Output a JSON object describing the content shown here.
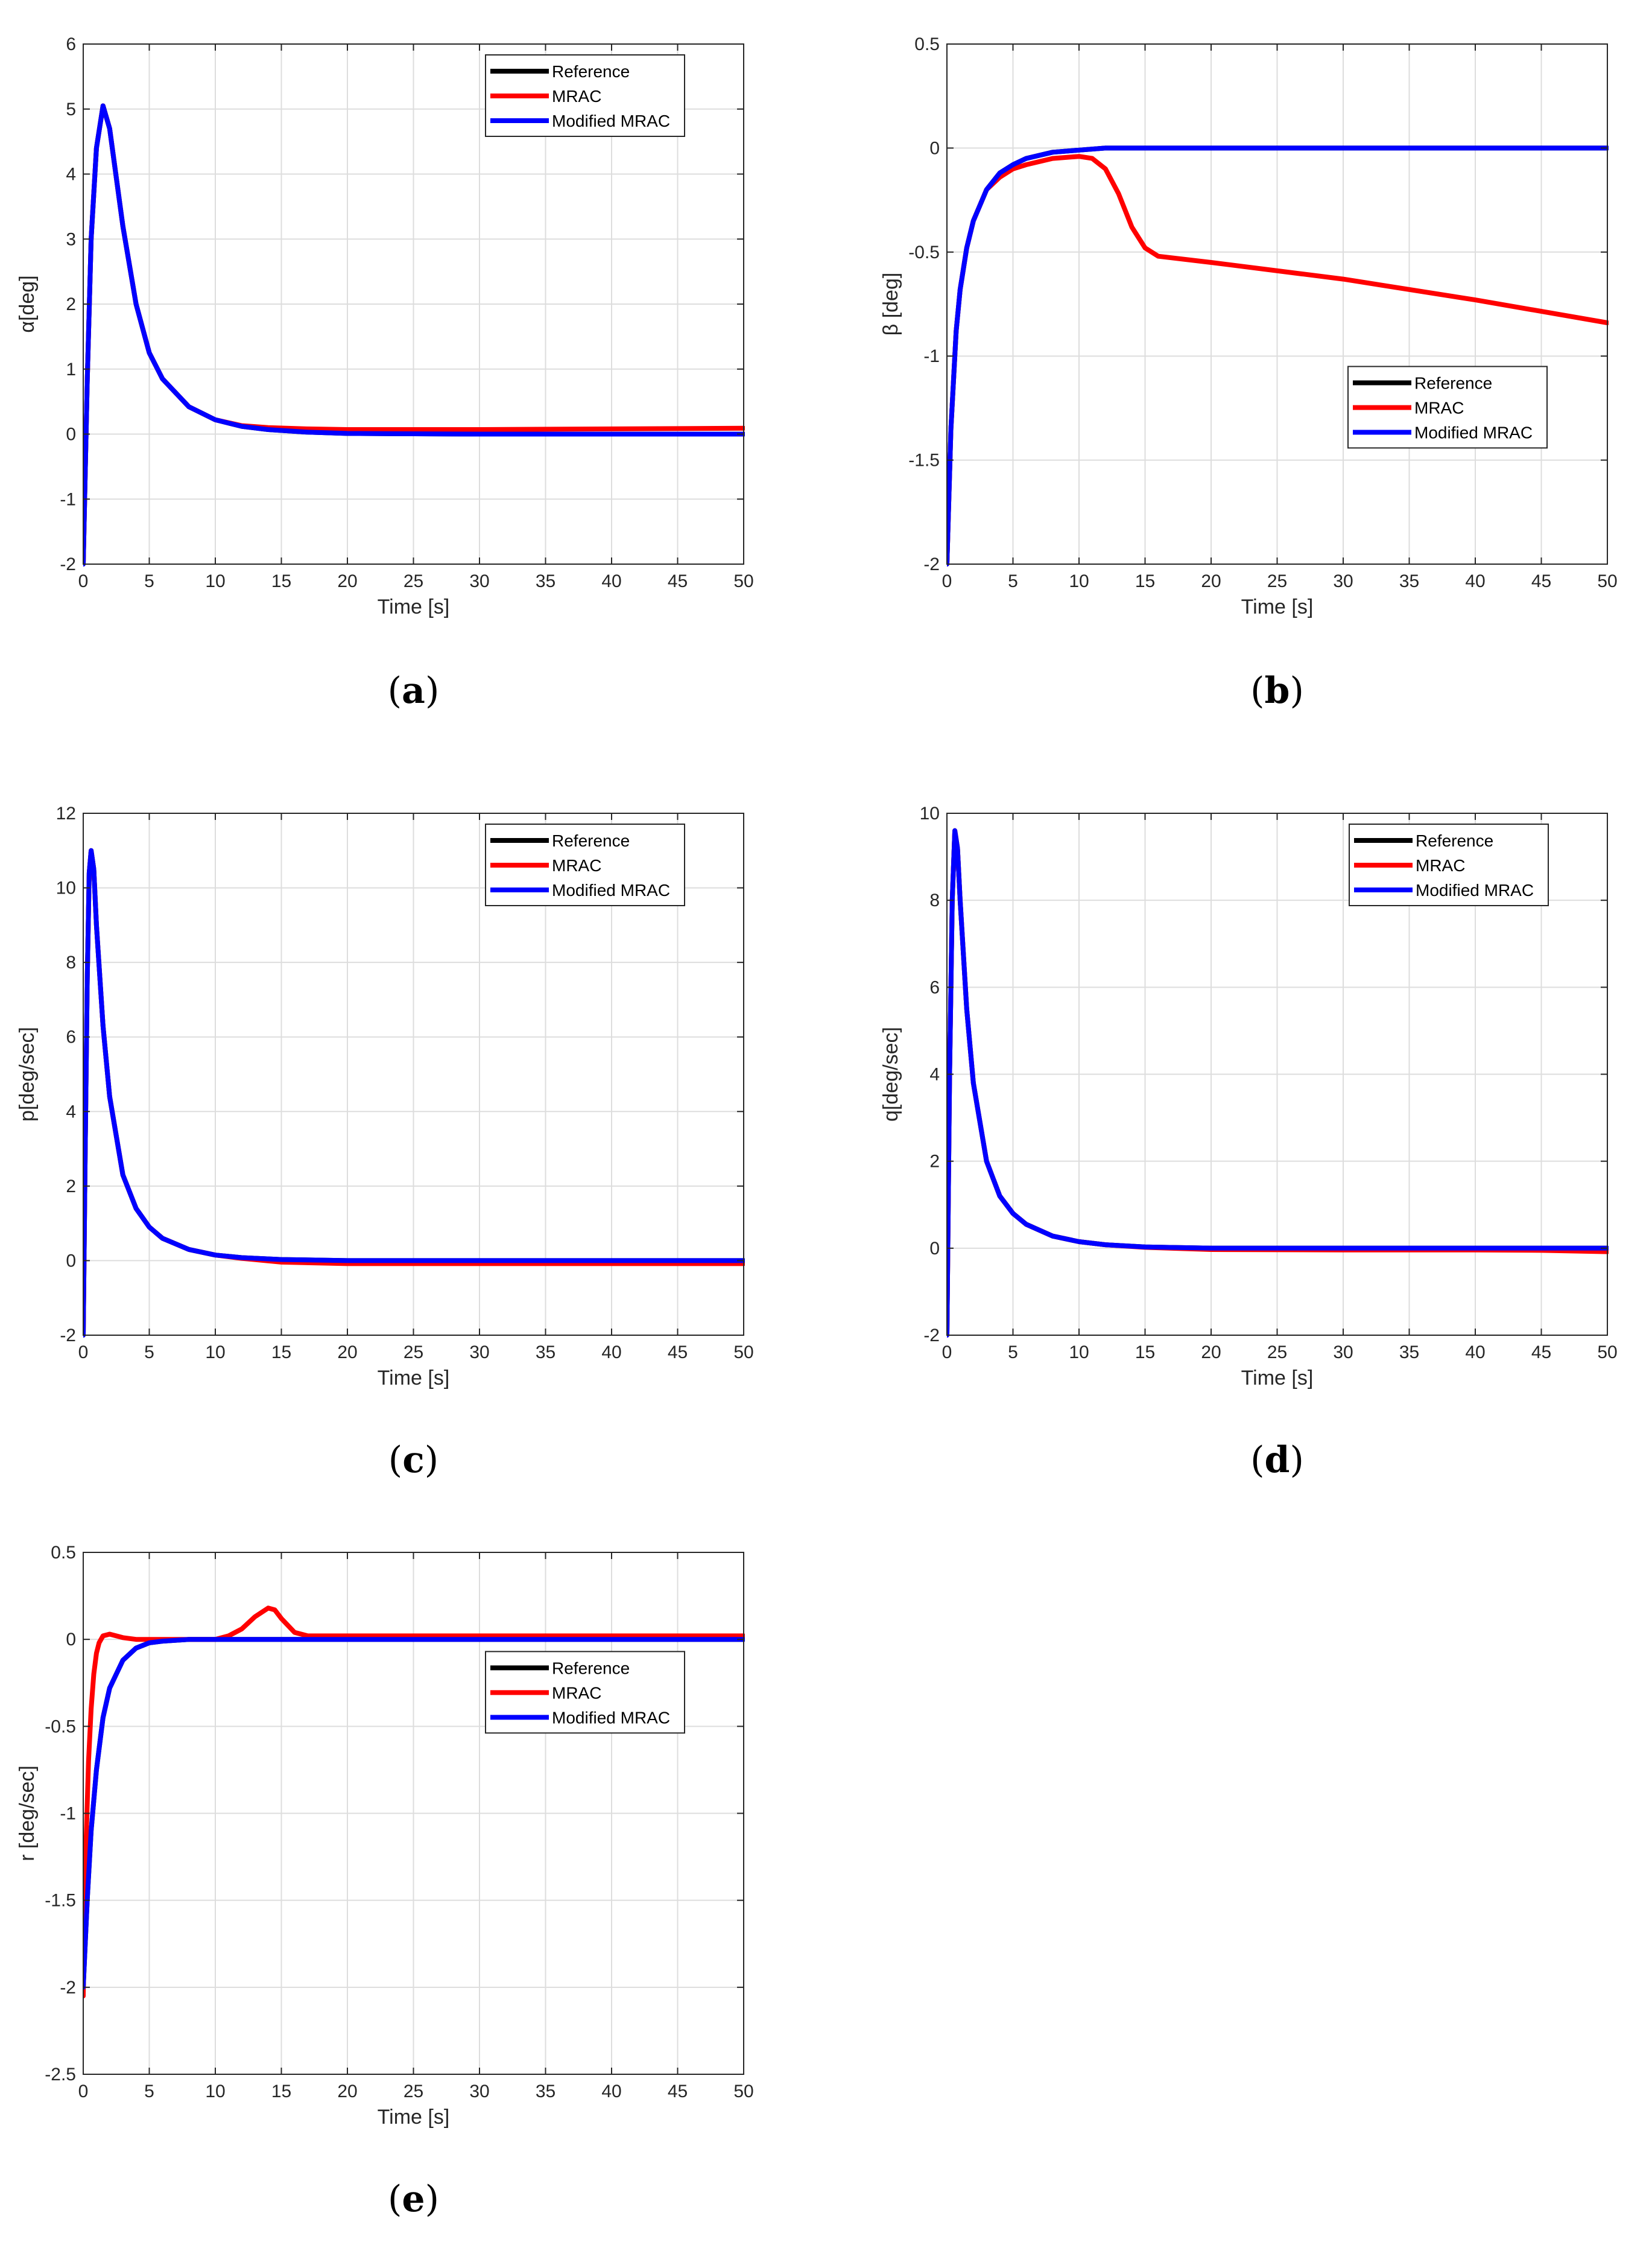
{
  "figure": {
    "xlabel": "Time [s]",
    "legend": [
      "Reference",
      "MRAC",
      "Modified MRAC"
    ],
    "colors": {
      "Reference": "#000000",
      "MRAC": "#ff0000",
      "Modified MRAC": "#0000ff"
    }
  },
  "chart_data": [
    {
      "id": "a",
      "type": "line",
      "caption": "(a)",
      "caption_letter": "a",
      "ylabel": "α[deg]",
      "xlabel": "Time [s]",
      "xlim": [
        0,
        50
      ],
      "ylim": [
        -2,
        6
      ],
      "xticks": [
        0,
        5,
        10,
        15,
        20,
        25,
        30,
        35,
        40,
        45,
        50
      ],
      "yticks": [
        -2,
        -1,
        0,
        1,
        2,
        3,
        4,
        5,
        6
      ],
      "ytick_labels": [
        "-2",
        "-1",
        "0",
        "1",
        "2",
        "3",
        "4",
        "5",
        "6"
      ],
      "legend_position": "top-right",
      "series": [
        {
          "name": "Reference",
          "x": [
            0,
            0.3,
            0.6,
            1.0,
            1.5,
            2.0,
            3.0,
            4.0,
            5.0,
            6.0,
            8.0,
            10.0,
            12.0,
            14.0,
            17.0,
            20.0,
            30.0,
            40.0,
            50.0
          ],
          "y": [
            -2.0,
            0.8,
            3.0,
            4.4,
            5.05,
            4.7,
            3.2,
            2.0,
            1.25,
            0.85,
            0.42,
            0.22,
            0.12,
            0.07,
            0.03,
            0.01,
            0.0,
            0.0,
            0.0
          ]
        },
        {
          "name": "MRAC",
          "x": [
            0,
            0.3,
            0.6,
            1.0,
            1.5,
            2.0,
            3.0,
            4.0,
            5.0,
            6.0,
            8.0,
            10.0,
            12.0,
            14.0,
            17.0,
            20.0,
            30.0,
            40.0,
            50.0
          ],
          "y": [
            -2.0,
            0.8,
            3.0,
            4.4,
            5.05,
            4.7,
            3.2,
            2.0,
            1.25,
            0.85,
            0.42,
            0.22,
            0.13,
            0.1,
            0.08,
            0.07,
            0.07,
            0.08,
            0.09
          ]
        },
        {
          "name": "Modified MRAC",
          "x": [
            0,
            0.3,
            0.6,
            1.0,
            1.5,
            2.0,
            3.0,
            4.0,
            5.0,
            6.0,
            8.0,
            10.0,
            12.0,
            14.0,
            17.0,
            20.0,
            30.0,
            40.0,
            50.0
          ],
          "y": [
            -2.0,
            0.8,
            3.0,
            4.4,
            5.05,
            4.7,
            3.2,
            2.0,
            1.25,
            0.85,
            0.42,
            0.22,
            0.12,
            0.07,
            0.03,
            0.01,
            0.0,
            0.0,
            0.0
          ]
        }
      ]
    },
    {
      "id": "b",
      "type": "line",
      "caption": "(b)",
      "caption_letter": "b",
      "ylabel": "β [deg]",
      "xlabel": "Time [s]",
      "xlim": [
        0,
        50
      ],
      "ylim": [
        -2,
        0.5
      ],
      "xticks": [
        0,
        5,
        10,
        15,
        20,
        25,
        30,
        35,
        40,
        45,
        50
      ],
      "yticks": [
        -2,
        -1.5,
        -1,
        -0.5,
        0,
        0.5
      ],
      "ytick_labels": [
        "-2",
        "-1.5",
        "-1",
        "-0.5",
        "0",
        "0.5"
      ],
      "legend_position": "lower-right",
      "series": [
        {
          "name": "Reference",
          "x": [
            0,
            0.3,
            0.7,
            1.0,
            1.5,
            2.0,
            3.0,
            4.0,
            5.0,
            6.0,
            8.0,
            10.0,
            12.0,
            15.0,
            20.0,
            30.0,
            40.0,
            50.0
          ],
          "y": [
            -2.0,
            -1.35,
            -0.88,
            -0.68,
            -0.48,
            -0.35,
            -0.2,
            -0.12,
            -0.08,
            -0.05,
            -0.02,
            -0.01,
            0.0,
            0.0,
            0.0,
            0.0,
            0.0,
            0.0
          ]
        },
        {
          "name": "MRAC",
          "x": [
            0,
            0.3,
            0.7,
            1.0,
            1.5,
            2.0,
            3.0,
            4.0,
            5.0,
            6.0,
            8.0,
            10.0,
            11.0,
            12.0,
            13.0,
            14.0,
            15.0,
            16.0,
            20.0,
            30.0,
            40.0,
            50.0
          ],
          "y": [
            -2.0,
            -1.35,
            -0.88,
            -0.68,
            -0.48,
            -0.35,
            -0.2,
            -0.14,
            -0.1,
            -0.08,
            -0.05,
            -0.04,
            -0.05,
            -0.1,
            -0.22,
            -0.38,
            -0.48,
            -0.52,
            -0.55,
            -0.63,
            -0.73,
            -0.84
          ]
        },
        {
          "name": "Modified MRAC",
          "x": [
            0,
            0.3,
            0.7,
            1.0,
            1.5,
            2.0,
            3.0,
            4.0,
            5.0,
            6.0,
            8.0,
            10.0,
            12.0,
            15.0,
            20.0,
            30.0,
            40.0,
            50.0
          ],
          "y": [
            -2.0,
            -1.35,
            -0.88,
            -0.68,
            -0.48,
            -0.35,
            -0.2,
            -0.12,
            -0.08,
            -0.05,
            -0.02,
            -0.01,
            0.0,
            0.0,
            0.0,
            0.0,
            0.0,
            0.0
          ]
        }
      ]
    },
    {
      "id": "c",
      "type": "line",
      "caption": "(c)",
      "caption_letter": "c",
      "ylabel": "p[deg/sec]",
      "xlabel": "Time [s]",
      "xlim": [
        0,
        50
      ],
      "ylim": [
        -2,
        12
      ],
      "xticks": [
        0,
        5,
        10,
        15,
        20,
        25,
        30,
        35,
        40,
        45,
        50
      ],
      "yticks": [
        -2,
        0,
        2,
        4,
        6,
        8,
        10,
        12
      ],
      "ytick_labels": [
        "-2",
        "0",
        "2",
        "4",
        "6",
        "8",
        "10",
        "12"
      ],
      "legend_position": "top-right",
      "series": [
        {
          "name": "Reference",
          "x": [
            0,
            0.15,
            0.3,
            0.45,
            0.6,
            0.8,
            1.0,
            1.5,
            2.0,
            3.0,
            4.0,
            5.0,
            6.0,
            8.0,
            10.0,
            12.0,
            15.0,
            20.0,
            30.0,
            40.0,
            50.0
          ],
          "y": [
            -2.0,
            3.0,
            7.5,
            10.4,
            11.0,
            10.5,
            9.0,
            6.3,
            4.4,
            2.3,
            1.4,
            0.9,
            0.6,
            0.3,
            0.15,
            0.08,
            0.03,
            0.0,
            0.0,
            0.0,
            0.0
          ]
        },
        {
          "name": "MRAC",
          "x": [
            0,
            0.15,
            0.3,
            0.45,
            0.6,
            0.8,
            1.0,
            1.5,
            2.0,
            3.0,
            4.0,
            5.0,
            6.0,
            8.0,
            10.0,
            12.0,
            15.0,
            20.0,
            30.0,
            40.0,
            50.0
          ],
          "y": [
            -2.0,
            3.0,
            7.5,
            10.4,
            11.0,
            10.5,
            9.0,
            6.3,
            4.4,
            2.3,
            1.4,
            0.9,
            0.6,
            0.3,
            0.15,
            0.06,
            -0.04,
            -0.08,
            -0.08,
            -0.08,
            -0.08
          ]
        },
        {
          "name": "Modified MRAC",
          "x": [
            0,
            0.15,
            0.3,
            0.45,
            0.6,
            0.8,
            1.0,
            1.5,
            2.0,
            3.0,
            4.0,
            5.0,
            6.0,
            8.0,
            10.0,
            12.0,
            15.0,
            20.0,
            30.0,
            40.0,
            50.0
          ],
          "y": [
            -2.0,
            3.0,
            7.5,
            10.4,
            11.0,
            10.5,
            9.0,
            6.3,
            4.4,
            2.3,
            1.4,
            0.9,
            0.6,
            0.3,
            0.15,
            0.08,
            0.03,
            0.0,
            0.0,
            0.0,
            0.0
          ]
        }
      ]
    },
    {
      "id": "d",
      "type": "line",
      "caption": "(d)",
      "caption_letter": "d",
      "ylabel": "q[deg/sec]",
      "xlabel": "Time [s]",
      "xlim": [
        0,
        50
      ],
      "ylim": [
        -2,
        10
      ],
      "xticks": [
        0,
        5,
        10,
        15,
        20,
        25,
        30,
        35,
        40,
        45,
        50
      ],
      "yticks": [
        -2,
        0,
        2,
        4,
        6,
        8,
        10
      ],
      "ytick_labels": [
        "-2",
        "0",
        "2",
        "4",
        "6",
        "8",
        "10"
      ],
      "legend_position": "top-right",
      "series": [
        {
          "name": "Reference",
          "x": [
            0,
            0.2,
            0.4,
            0.6,
            0.8,
            1.0,
            1.5,
            2.0,
            3.0,
            4.0,
            5.0,
            6.0,
            8.0,
            10.0,
            12.0,
            15.0,
            20.0,
            30.0,
            40.0,
            50.0
          ],
          "y": [
            -2.0,
            4.0,
            8.0,
            9.6,
            9.2,
            8.0,
            5.5,
            3.8,
            2.0,
            1.2,
            0.8,
            0.55,
            0.28,
            0.15,
            0.08,
            0.03,
            0.0,
            0.0,
            0.0,
            0.0
          ]
        },
        {
          "name": "MRAC",
          "x": [
            0,
            0.2,
            0.4,
            0.6,
            0.8,
            1.0,
            1.5,
            2.0,
            3.0,
            4.0,
            5.0,
            6.0,
            8.0,
            10.0,
            12.0,
            15.0,
            20.0,
            30.0,
            40.0,
            45.0,
            50.0
          ],
          "y": [
            -2.0,
            4.0,
            8.0,
            9.6,
            9.2,
            8.0,
            5.5,
            3.8,
            2.0,
            1.2,
            0.8,
            0.55,
            0.28,
            0.15,
            0.08,
            0.02,
            -0.03,
            -0.04,
            -0.04,
            -0.05,
            -0.08
          ]
        },
        {
          "name": "Modified MRAC",
          "x": [
            0,
            0.2,
            0.4,
            0.6,
            0.8,
            1.0,
            1.5,
            2.0,
            3.0,
            4.0,
            5.0,
            6.0,
            8.0,
            10.0,
            12.0,
            15.0,
            20.0,
            30.0,
            40.0,
            50.0
          ],
          "y": [
            -2.0,
            4.0,
            8.0,
            9.6,
            9.2,
            8.0,
            5.5,
            3.8,
            2.0,
            1.2,
            0.8,
            0.55,
            0.28,
            0.15,
            0.08,
            0.03,
            0.0,
            0.0,
            0.0,
            0.0
          ]
        }
      ]
    },
    {
      "id": "e",
      "type": "line",
      "caption": "(e)",
      "caption_letter": "e",
      "ylabel": "r [deg/sec]",
      "xlabel": "Time [s]",
      "xlim": [
        0,
        50
      ],
      "ylim": [
        -2.5,
        0.5
      ],
      "xticks": [
        0,
        5,
        10,
        15,
        20,
        25,
        30,
        35,
        40,
        45,
        50
      ],
      "yticks": [
        -2.5,
        -2,
        -1.5,
        -1,
        -0.5,
        0,
        0.5
      ],
      "ytick_labels": [
        "-2.5",
        "-2",
        "-1.5",
        "-1",
        "-0.5",
        "0",
        "0.5"
      ],
      "legend_position": "center-right",
      "series": [
        {
          "name": "Reference",
          "x": [
            0,
            0.3,
            0.6,
            1.0,
            1.5,
            2.0,
            3.0,
            4.0,
            5.0,
            6.0,
            8.0,
            10.0,
            20.0,
            30.0,
            40.0,
            50.0
          ],
          "y": [
            -2.0,
            -1.5,
            -1.1,
            -0.75,
            -0.45,
            -0.28,
            -0.12,
            -0.05,
            -0.02,
            -0.01,
            0.0,
            0.0,
            0.0,
            0.0,
            0.0,
            0.0
          ]
        },
        {
          "name": "MRAC",
          "x": [
            0,
            0.2,
            0.4,
            0.6,
            0.8,
            1.0,
            1.2,
            1.5,
            2.0,
            2.5,
            3.0,
            4.0,
            5.0,
            8.0,
            10.0,
            11.0,
            12.0,
            13.0,
            14.0,
            14.5,
            15.0,
            16.0,
            17.0,
            18.0,
            20.0,
            30.0,
            40.0,
            50.0
          ],
          "y": [
            -2.05,
            -1.2,
            -0.7,
            -0.4,
            -0.2,
            -0.08,
            -0.02,
            0.02,
            0.03,
            0.02,
            0.01,
            0.0,
            0.0,
            0.0,
            0.0,
            0.02,
            0.06,
            0.13,
            0.18,
            0.17,
            0.12,
            0.04,
            0.02,
            0.02,
            0.02,
            0.02,
            0.02,
            0.02
          ]
        },
        {
          "name": "Modified MRAC",
          "x": [
            0,
            0.3,
            0.6,
            1.0,
            1.5,
            2.0,
            3.0,
            4.0,
            5.0,
            6.0,
            8.0,
            10.0,
            20.0,
            30.0,
            40.0,
            50.0
          ],
          "y": [
            -2.0,
            -1.5,
            -1.1,
            -0.75,
            -0.45,
            -0.28,
            -0.12,
            -0.05,
            -0.02,
            -0.01,
            0.0,
            0.0,
            0.0,
            0.0,
            0.0,
            0.0
          ]
        }
      ]
    }
  ]
}
